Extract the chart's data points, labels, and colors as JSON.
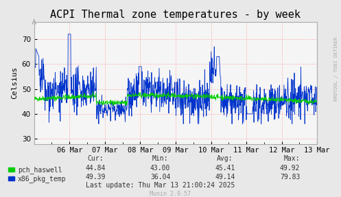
{
  "title": "ACPI Thermal zone temperatures - by week",
  "ylabel": "Celsius",
  "bg_color": "#e8e8e8",
  "plot_bg_color": "#f5f5f5",
  "grid_color": "#ff9999",
  "grid_style": ":",
  "yticks": [
    30,
    40,
    50,
    60,
    70
  ],
  "ylim": [
    28,
    77
  ],
  "xlabel_dates": [
    "06 Mar",
    "07 Mar",
    "08 Mar",
    "09 Mar",
    "10 Mar",
    "11 Mar",
    "12 Mar",
    "13 Mar"
  ],
  "line_green_color": "#00cc00",
  "line_blue_color": "#0033cc",
  "legend": [
    {
      "label": "pch_haswell",
      "color": "#00cc00"
    },
    {
      "label": "x86_pkg_temp",
      "color": "#0033cc"
    }
  ],
  "stats_header": [
    "Cur:",
    "Min:",
    "Avg:",
    "Max:"
  ],
  "stats_pch": [
    "44.84",
    "43.00",
    "45.41",
    "49.92"
  ],
  "stats_x86": [
    "49.39",
    "36.04",
    "49.14",
    "79.83"
  ],
  "last_update": "Last update: Thu Mar 13 21:00:24 2025",
  "munin_version": "Munin 2.0.57",
  "rrdtool_label": "RRDTOOL / TOBI OETIKER",
  "title_fontsize": 11,
  "axis_fontsize": 7.5,
  "legend_fontsize": 7.5
}
